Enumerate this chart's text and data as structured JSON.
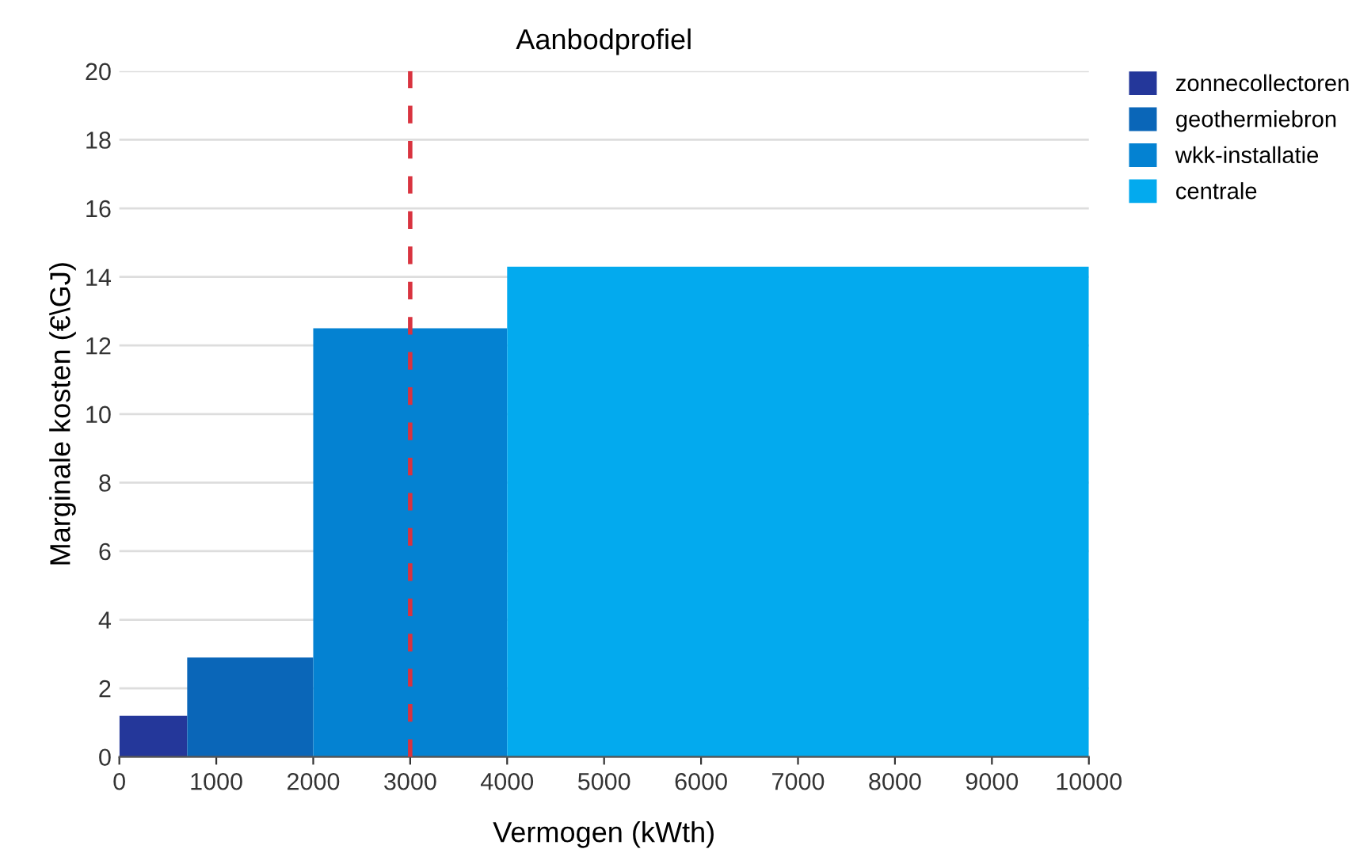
{
  "chart_data": {
    "type": "histogram",
    "title": "Aanbodprofiel",
    "xlabel": "Vermogen (kWth)",
    "ylabel": "Marginale kosten (€\\GJ)",
    "bins": [
      0,
      700,
      2000,
      4000,
      10000
    ],
    "series": [
      {
        "name": "zonnecollectoren",
        "color": "#24379a",
        "values": [
          1.2,
          null,
          null,
          null
        ]
      },
      {
        "name": "geothermiebron",
        "color": "#0a66b8",
        "values": [
          null,
          2.9,
          null,
          null
        ]
      },
      {
        "name": "wkk-installatie",
        "color": "#0482d2",
        "values": [
          null,
          null,
          12.5,
          null
        ]
      },
      {
        "name": "centrale",
        "color": "#03aaee",
        "values": [
          null,
          null,
          null,
          14.3
        ]
      }
    ],
    "xlim": [
      0,
      10000
    ],
    "xticks": [
      0,
      1000,
      2000,
      3000,
      4000,
      5000,
      6000,
      7000,
      8000,
      9000,
      10000
    ],
    "ylim": [
      0,
      20
    ],
    "yticks": [
      0,
      2,
      4,
      6,
      8,
      10,
      12,
      14,
      16,
      18,
      20
    ],
    "ref_lines": [
      {
        "axis": "x",
        "value": 3000,
        "color": "#d9333f",
        "line_style": "dashed"
      }
    ],
    "grid": "y",
    "legend": "top right"
  }
}
